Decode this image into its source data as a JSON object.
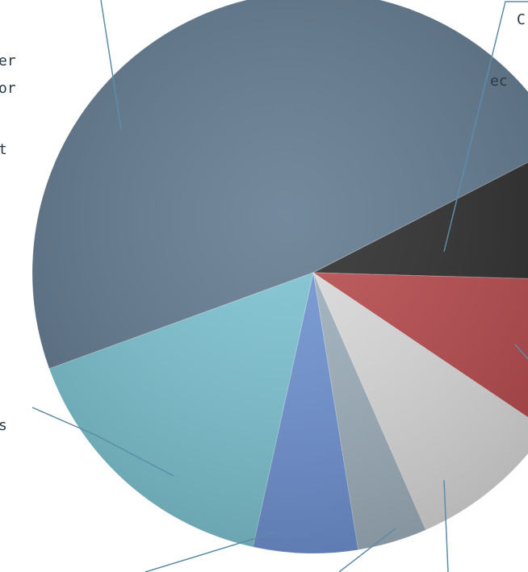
{
  "chart_data": {
    "type": "pie",
    "values": [
      48,
      8,
      9,
      9,
      4,
      6,
      16
    ],
    "colors": [
      "#61798f",
      "#2b2b2b",
      "#b84a4d",
      "#dcdcdc",
      "#9fb1bd",
      "#6f93d4",
      "#7cc3d2"
    ],
    "annotations": [
      "er",
      "or",
      "t",
      "s",
      "C",
      "ec"
    ]
  }
}
